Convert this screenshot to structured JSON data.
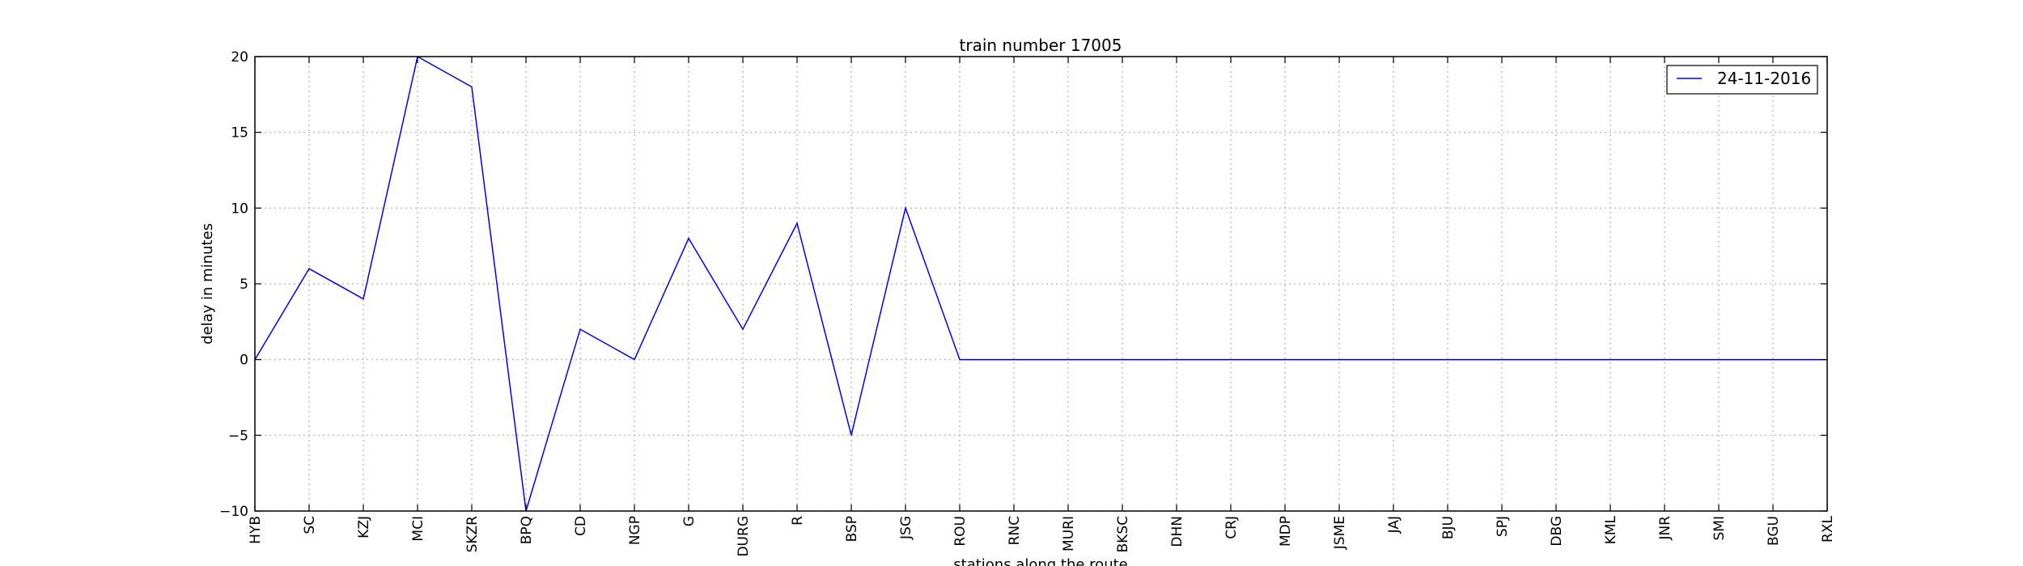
{
  "chart_data": {
    "type": "line",
    "title": "train number 17005",
    "xlabel": "stations along the route",
    "ylabel": "delay in minutes",
    "categories": [
      "HYB",
      "SC",
      "KZJ",
      "MCI",
      "SKZR",
      "BPQ",
      "CD",
      "NGP",
      "G",
      "DURG",
      "R",
      "BSP",
      "JSG",
      "ROU",
      "RNC",
      "MURI",
      "BKSC",
      "DHN",
      "CRJ",
      "MDP",
      "JSME",
      "JAJ",
      "BJU",
      "SPJ",
      "DBG",
      "KML",
      "JNR",
      "SMI",
      "BGU",
      "RXL"
    ],
    "series": [
      {
        "name": "24-11-2016",
        "color": "#0000ff",
        "values": [
          0,
          6,
          4,
          20,
          18,
          -10,
          2,
          0,
          8,
          2,
          9,
          -5,
          10,
          0,
          0,
          0,
          0,
          0,
          0,
          0,
          0,
          0,
          0,
          0,
          0,
          0,
          0,
          0,
          0,
          0
        ]
      }
    ],
    "ylim": [
      -10,
      20
    ],
    "yticks": [
      -10,
      -5,
      0,
      5,
      10,
      15,
      20
    ],
    "ytick_labels": [
      "−10",
      "−5",
      "0",
      "5",
      "10",
      "15",
      "20"
    ],
    "grid": true,
    "legend_position": "top-right"
  }
}
